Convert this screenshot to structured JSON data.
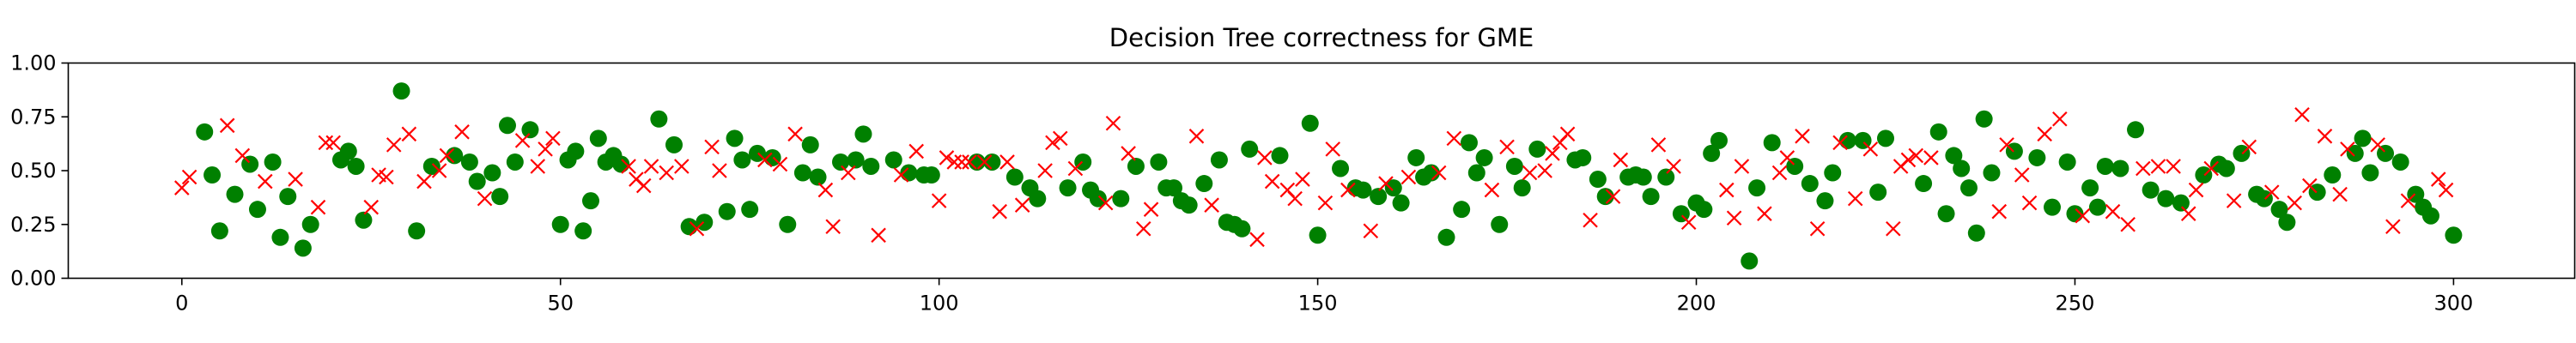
{
  "chart_data": {
    "type": "scatter",
    "title": "Decision Tree correctness for GME",
    "xlabel": "",
    "ylabel": "",
    "xlim": [
      -15,
      316
    ],
    "ylim": [
      0,
      1
    ],
    "xticks": [
      0,
      50,
      100,
      150,
      200,
      250,
      300
    ],
    "yticks": [
      0.0,
      0.25,
      0.5,
      0.75,
      1.0
    ],
    "ytick_labels": [
      "0.00",
      "0.25",
      "0.50",
      "0.75",
      "1.00"
    ],
    "grid": false,
    "legend": "none",
    "series": [
      {
        "marker": "circle",
        "color": "#008000",
        "points": [
          [
            3,
            0.68
          ],
          [
            4,
            0.48
          ],
          [
            5,
            0.22
          ],
          [
            7,
            0.39
          ],
          [
            9,
            0.53
          ],
          [
            10,
            0.32
          ],
          [
            12,
            0.54
          ],
          [
            13,
            0.19
          ],
          [
            14,
            0.38
          ],
          [
            16,
            0.14
          ],
          [
            17,
            0.25
          ],
          [
            21,
            0.55
          ],
          [
            22,
            0.59
          ],
          [
            23,
            0.52
          ],
          [
            24,
            0.27
          ],
          [
            29,
            0.87
          ],
          [
            31,
            0.22
          ],
          [
            33,
            0.52
          ],
          [
            36,
            0.57
          ],
          [
            38,
            0.54
          ],
          [
            39,
            0.45
          ],
          [
            41,
            0.49
          ],
          [
            42,
            0.38
          ],
          [
            43,
            0.71
          ],
          [
            44,
            0.54
          ],
          [
            46,
            0.69
          ],
          [
            50,
            0.25
          ],
          [
            51,
            0.55
          ],
          [
            52,
            0.59
          ],
          [
            53,
            0.22
          ],
          [
            54,
            0.36
          ],
          [
            55,
            0.65
          ],
          [
            56,
            0.54
          ],
          [
            57,
            0.57
          ],
          [
            58,
            0.53
          ],
          [
            63,
            0.74
          ],
          [
            65,
            0.62
          ],
          [
            67,
            0.24
          ],
          [
            69,
            0.26
          ],
          [
            72,
            0.31
          ],
          [
            73,
            0.65
          ],
          [
            74,
            0.55
          ],
          [
            75,
            0.32
          ],
          [
            76,
            0.58
          ],
          [
            78,
            0.56
          ],
          [
            80,
            0.25
          ],
          [
            82,
            0.49
          ],
          [
            83,
            0.62
          ],
          [
            84,
            0.47
          ],
          [
            87,
            0.54
          ],
          [
            89,
            0.55
          ],
          [
            90,
            0.67
          ],
          [
            91,
            0.52
          ],
          [
            94,
            0.55
          ],
          [
            96,
            0.49
          ],
          [
            98,
            0.48
          ],
          [
            99,
            0.48
          ],
          [
            105,
            0.54
          ],
          [
            107,
            0.54
          ],
          [
            110,
            0.47
          ],
          [
            112,
            0.42
          ],
          [
            113,
            0.37
          ],
          [
            117,
            0.42
          ],
          [
            119,
            0.54
          ],
          [
            120,
            0.41
          ],
          [
            121,
            0.37
          ],
          [
            124,
            0.37
          ],
          [
            126,
            0.52
          ],
          [
            129,
            0.54
          ],
          [
            130,
            0.42
          ],
          [
            131,
            0.42
          ],
          [
            132,
            0.36
          ],
          [
            133,
            0.34
          ],
          [
            135,
            0.44
          ],
          [
            137,
            0.55
          ],
          [
            138,
            0.26
          ],
          [
            139,
            0.25
          ],
          [
            140,
            0.23
          ],
          [
            141,
            0.6
          ],
          [
            145,
            0.57
          ],
          [
            149,
            0.72
          ],
          [
            150,
            0.2
          ],
          [
            153,
            0.51
          ],
          [
            155,
            0.42
          ],
          [
            156,
            0.41
          ],
          [
            158,
            0.38
          ],
          [
            160,
            0.42
          ],
          [
            161,
            0.35
          ],
          [
            163,
            0.56
          ],
          [
            164,
            0.47
          ],
          [
            165,
            0.49
          ],
          [
            167,
            0.19
          ],
          [
            169,
            0.32
          ],
          [
            170,
            0.63
          ],
          [
            171,
            0.49
          ],
          [
            172,
            0.56
          ],
          [
            174,
            0.25
          ],
          [
            176,
            0.52
          ],
          [
            177,
            0.42
          ],
          [
            179,
            0.6
          ],
          [
            184,
            0.55
          ],
          [
            185,
            0.56
          ],
          [
            187,
            0.46
          ],
          [
            188,
            0.38
          ],
          [
            191,
            0.47
          ],
          [
            192,
            0.48
          ],
          [
            193,
            0.47
          ],
          [
            194,
            0.38
          ],
          [
            196,
            0.47
          ],
          [
            198,
            0.3
          ],
          [
            200,
            0.35
          ],
          [
            201,
            0.32
          ],
          [
            202,
            0.58
          ],
          [
            203,
            0.64
          ],
          [
            207,
            0.08
          ],
          [
            208,
            0.42
          ],
          [
            210,
            0.63
          ],
          [
            213,
            0.52
          ],
          [
            215,
            0.44
          ],
          [
            217,
            0.36
          ],
          [
            218,
            0.49
          ],
          [
            220,
            0.64
          ],
          [
            222,
            0.64
          ],
          [
            224,
            0.4
          ],
          [
            225,
            0.65
          ],
          [
            230,
            0.44
          ],
          [
            232,
            0.68
          ],
          [
            233,
            0.3
          ],
          [
            234,
            0.57
          ],
          [
            235,
            0.51
          ],
          [
            236,
            0.42
          ],
          [
            237,
            0.21
          ],
          [
            238,
            0.74
          ],
          [
            239,
            0.49
          ],
          [
            242,
            0.59
          ],
          [
            245,
            0.56
          ],
          [
            247,
            0.33
          ],
          [
            249,
            0.54
          ],
          [
            250,
            0.3
          ],
          [
            252,
            0.42
          ],
          [
            253,
            0.33
          ],
          [
            254,
            0.52
          ],
          [
            256,
            0.51
          ],
          [
            258,
            0.69
          ],
          [
            260,
            0.41
          ],
          [
            262,
            0.37
          ],
          [
            264,
            0.35
          ],
          [
            267,
            0.48
          ],
          [
            269,
            0.53
          ],
          [
            270,
            0.51
          ],
          [
            272,
            0.58
          ],
          [
            274,
            0.39
          ],
          [
            275,
            0.37
          ],
          [
            277,
            0.32
          ],
          [
            278,
            0.26
          ],
          [
            282,
            0.4
          ],
          [
            284,
            0.48
          ],
          [
            287,
            0.58
          ],
          [
            288,
            0.65
          ],
          [
            289,
            0.49
          ],
          [
            291,
            0.58
          ],
          [
            293,
            0.54
          ],
          [
            295,
            0.39
          ],
          [
            296,
            0.33
          ],
          [
            297,
            0.29
          ],
          [
            300,
            0.2
          ]
        ]
      },
      {
        "marker": "x",
        "color": "#ff0000",
        "points": [
          [
            0,
            0.42
          ],
          [
            1,
            0.47
          ],
          [
            6,
            0.71
          ],
          [
            8,
            0.57
          ],
          [
            11,
            0.45
          ],
          [
            15,
            0.46
          ],
          [
            18,
            0.33
          ],
          [
            19,
            0.63
          ],
          [
            20,
            0.63
          ],
          [
            25,
            0.33
          ],
          [
            26,
            0.48
          ],
          [
            27,
            0.47
          ],
          [
            28,
            0.62
          ],
          [
            30,
            0.67
          ],
          [
            32,
            0.45
          ],
          [
            34,
            0.5
          ],
          [
            35,
            0.57
          ],
          [
            37,
            0.68
          ],
          [
            40,
            0.37
          ],
          [
            45,
            0.64
          ],
          [
            47,
            0.52
          ],
          [
            48,
            0.6
          ],
          [
            49,
            0.65
          ],
          [
            59,
            0.52
          ],
          [
            60,
            0.46
          ],
          [
            61,
            0.43
          ],
          [
            62,
            0.52
          ],
          [
            64,
            0.49
          ],
          [
            66,
            0.52
          ],
          [
            68,
            0.23
          ],
          [
            70,
            0.61
          ],
          [
            71,
            0.5
          ],
          [
            77,
            0.55
          ],
          [
            79,
            0.53
          ],
          [
            81,
            0.67
          ],
          [
            85,
            0.41
          ],
          [
            86,
            0.24
          ],
          [
            88,
            0.49
          ],
          [
            92,
            0.2
          ],
          [
            95,
            0.48
          ],
          [
            97,
            0.59
          ],
          [
            100,
            0.36
          ],
          [
            101,
            0.56
          ],
          [
            102,
            0.54
          ],
          [
            103,
            0.54
          ],
          [
            104,
            0.54
          ],
          [
            106,
            0.54
          ],
          [
            108,
            0.31
          ],
          [
            109,
            0.54
          ],
          [
            111,
            0.34
          ],
          [
            114,
            0.5
          ],
          [
            115,
            0.63
          ],
          [
            116,
            0.65
          ],
          [
            118,
            0.51
          ],
          [
            122,
            0.35
          ],
          [
            123,
            0.72
          ],
          [
            125,
            0.58
          ],
          [
            127,
            0.23
          ],
          [
            128,
            0.32
          ],
          [
            134,
            0.66
          ],
          [
            136,
            0.34
          ],
          [
            142,
            0.18
          ],
          [
            143,
            0.56
          ],
          [
            144,
            0.45
          ],
          [
            146,
            0.41
          ],
          [
            147,
            0.37
          ],
          [
            148,
            0.46
          ],
          [
            151,
            0.35
          ],
          [
            152,
            0.6
          ],
          [
            154,
            0.41
          ],
          [
            157,
            0.22
          ],
          [
            159,
            0.44
          ],
          [
            162,
            0.47
          ],
          [
            166,
            0.49
          ],
          [
            168,
            0.65
          ],
          [
            173,
            0.41
          ],
          [
            175,
            0.61
          ],
          [
            178,
            0.49
          ],
          [
            180,
            0.5
          ],
          [
            181,
            0.58
          ],
          [
            182,
            0.63
          ],
          [
            183,
            0.67
          ],
          [
            186,
            0.27
          ],
          [
            189,
            0.38
          ],
          [
            190,
            0.55
          ],
          [
            195,
            0.62
          ],
          [
            197,
            0.52
          ],
          [
            199,
            0.26
          ],
          [
            204,
            0.41
          ],
          [
            205,
            0.28
          ],
          [
            206,
            0.52
          ],
          [
            209,
            0.3
          ],
          [
            211,
            0.49
          ],
          [
            212,
            0.56
          ],
          [
            214,
            0.66
          ],
          [
            216,
            0.23
          ],
          [
            219,
            0.63
          ],
          [
            221,
            0.37
          ],
          [
            223,
            0.6
          ],
          [
            226,
            0.23
          ],
          [
            227,
            0.52
          ],
          [
            228,
            0.55
          ],
          [
            229,
            0.57
          ],
          [
            231,
            0.56
          ],
          [
            240,
            0.31
          ],
          [
            241,
            0.62
          ],
          [
            243,
            0.48
          ],
          [
            244,
            0.35
          ],
          [
            246,
            0.67
          ],
          [
            248,
            0.74
          ],
          [
            251,
            0.29
          ],
          [
            255,
            0.31
          ],
          [
            257,
            0.25
          ],
          [
            259,
            0.51
          ],
          [
            261,
            0.52
          ],
          [
            263,
            0.52
          ],
          [
            265,
            0.3
          ],
          [
            266,
            0.41
          ],
          [
            268,
            0.51
          ],
          [
            271,
            0.36
          ],
          [
            273,
            0.61
          ],
          [
            276,
            0.4
          ],
          [
            279,
            0.35
          ],
          [
            280,
            0.76
          ],
          [
            281,
            0.43
          ],
          [
            283,
            0.66
          ],
          [
            285,
            0.39
          ],
          [
            286,
            0.6
          ],
          [
            290,
            0.62
          ],
          [
            292,
            0.24
          ],
          [
            294,
            0.36
          ],
          [
            298,
            0.46
          ],
          [
            299,
            0.41
          ]
        ]
      }
    ]
  }
}
